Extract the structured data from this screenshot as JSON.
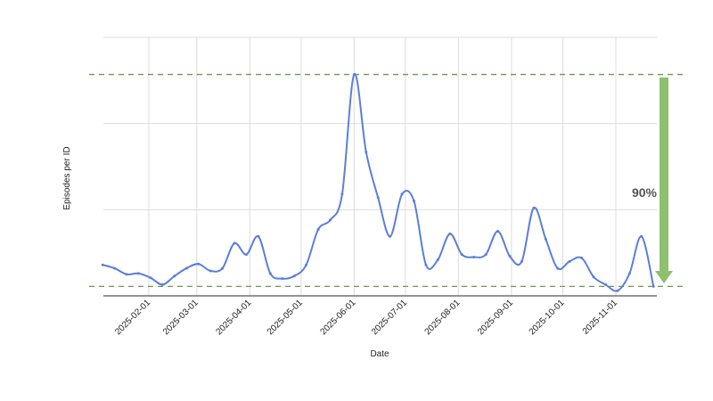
{
  "chart_data": {
    "type": "line",
    "title": "",
    "xlabel": "Date",
    "ylabel": "Episodes per ID",
    "ylim": [
      0,
      3
    ],
    "grid": true,
    "x_tick_labels": [
      "2025-02-01",
      "2025-03-01",
      "2025-04-01",
      "2025-05-01",
      "2025-06-01",
      "2025-07-01",
      "2025-08-01",
      "2025-09-01",
      "2025-10-01",
      "2025-11-01"
    ],
    "x": [
      "2025-01-05",
      "2025-01-12",
      "2025-01-19",
      "2025-01-26",
      "2025-02-02",
      "2025-02-09",
      "2025-02-16",
      "2025-02-23",
      "2025-03-02",
      "2025-03-09",
      "2025-03-16",
      "2025-03-23",
      "2025-03-30",
      "2025-04-06",
      "2025-04-13",
      "2025-04-20",
      "2025-04-27",
      "2025-05-04",
      "2025-05-11",
      "2025-05-18",
      "2025-05-25",
      "2025-06-01",
      "2025-06-08",
      "2025-06-15",
      "2025-06-22",
      "2025-06-29",
      "2025-07-06",
      "2025-07-13",
      "2025-07-20",
      "2025-07-27",
      "2025-08-03",
      "2025-08-10",
      "2025-08-17",
      "2025-08-24",
      "2025-08-31",
      "2025-09-07",
      "2025-09-14",
      "2025-09-21",
      "2025-09-28",
      "2025-10-05",
      "2025-10-12",
      "2025-10-19",
      "2025-10-26",
      "2025-11-02",
      "2025-11-09",
      "2025-11-16",
      "2025-11-23"
    ],
    "series": [
      {
        "color": "#5b7fd9",
        "values": [
          0.36,
          0.32,
          0.25,
          0.26,
          0.21,
          0.13,
          0.23,
          0.32,
          0.37,
          0.29,
          0.32,
          0.61,
          0.48,
          0.69,
          0.26,
          0.2,
          0.23,
          0.36,
          0.77,
          0.88,
          1.18,
          2.57,
          1.67,
          1.14,
          0.69,
          1.18,
          1.1,
          0.36,
          0.42,
          0.72,
          0.48,
          0.45,
          0.48,
          0.75,
          0.46,
          0.4,
          1.02,
          0.66,
          0.32,
          0.4,
          0.44,
          0.22,
          0.13,
          0.06,
          0.26,
          0.69,
          0.11
        ]
      }
    ],
    "reference_lines": {
      "values": [
        2.57,
        0.11
      ],
      "color": "#6a9a4a",
      "style": "dashed"
    },
    "annotation": {
      "text": "90%",
      "arrow_color": "#8dc06f",
      "direction": "down"
    }
  }
}
